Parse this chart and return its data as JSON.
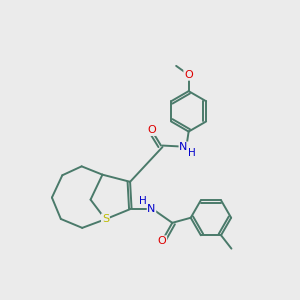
{
  "bg": "#ebebeb",
  "bc": "#4a7a6a",
  "ac_O": "#dd0000",
  "ac_N": "#0000cc",
  "ac_S": "#bbbb00",
  "ac_C": "#4a7a6a",
  "fs": 8.0,
  "lw": 1.4,
  "dbl": 0.1,
  "r_ring": 0.68,
  "xlim": [
    0,
    10
  ],
  "ylim": [
    0,
    10
  ]
}
